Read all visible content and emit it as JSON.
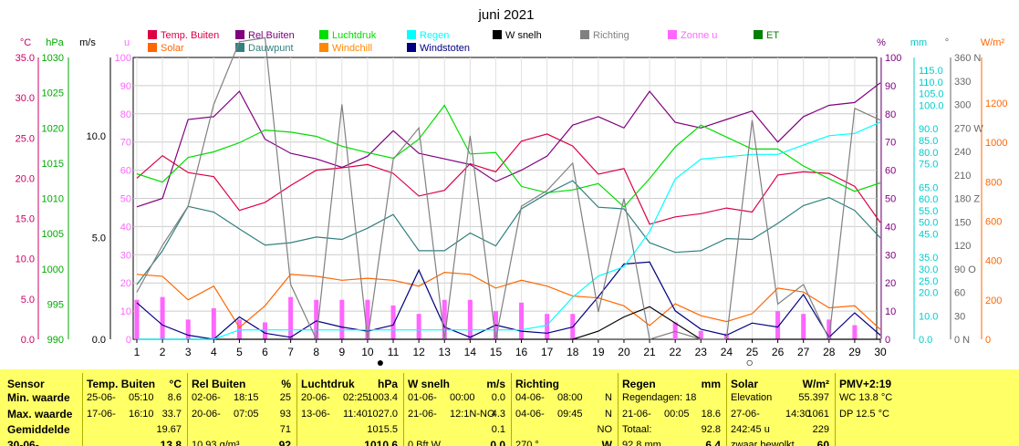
{
  "chart_data": {
    "type": "line",
    "title": "juni 2021",
    "x": [
      1,
      2,
      3,
      4,
      5,
      6,
      7,
      8,
      9,
      10,
      11,
      12,
      13,
      14,
      15,
      16,
      17,
      18,
      19,
      20,
      21,
      22,
      23,
      24,
      25,
      26,
      27,
      28,
      29,
      30
    ],
    "axes_left": [
      {
        "unit": "°C",
        "ticks": [
          "35.0",
          "30.0",
          "25.0",
          "20.0",
          "15.0",
          "10.0",
          "5.0",
          "0.0"
        ],
        "color": "#cc0066"
      },
      {
        "unit": "hPa",
        "ticks": [
          "1030",
          "1025",
          "1020",
          "1015",
          "1010",
          "1005",
          "1000",
          "995",
          "990"
        ],
        "color": "#00aa00"
      },
      {
        "unit": "m/s",
        "ticks": [
          "10.0",
          "5.0",
          "0.0"
        ],
        "color": "#000000"
      },
      {
        "unit": "u",
        "ticks": [
          "100",
          "90",
          "80",
          "70",
          "60",
          "50",
          "40",
          "30",
          "20",
          "10",
          "0"
        ],
        "color": "#ff66ff"
      }
    ],
    "axes_right": [
      {
        "unit": "%",
        "ticks": [
          "100",
          "90",
          "80",
          "70",
          "60",
          "50",
          "40",
          "30",
          "20",
          "10",
          "0"
        ],
        "color": "#800080"
      },
      {
        "unit": "mm",
        "ticks": [
          "115.0",
          "110.0",
          "105.0",
          "100.0",
          "90.0",
          "85.0",
          "80.0",
          "75.0",
          "65.0",
          "60.0",
          "55.0",
          "50.0",
          "45.0",
          "35.0",
          "30.0",
          "25.0",
          "20.0",
          "10.0",
          "0.0"
        ],
        "color": "#00cccc"
      },
      {
        "unit": "°",
        "ticks": [
          "360 N",
          "330",
          "300",
          "270 W",
          "240",
          "210",
          "180 Z",
          "150",
          "120",
          "90 O",
          "60",
          "30",
          "0 N"
        ],
        "color": "#666666"
      },
      {
        "unit": "W/m²",
        "ticks": [
          "1200",
          "1000",
          "800",
          "600",
          "400",
          "200",
          "0"
        ],
        "color": "#ff6600"
      }
    ],
    "legend": [
      {
        "name": "Temp. Buiten",
        "color": "#dd0044"
      },
      {
        "name": "Solar",
        "color": "#ff6600"
      },
      {
        "name": "Rel Buiten",
        "color": "#800080"
      },
      {
        "name": "Dauwpunt",
        "color": "#338080"
      },
      {
        "name": "Luchtdruk",
        "color": "#00dd00"
      },
      {
        "name": "Windchill",
        "color": "#ff8800"
      },
      {
        "name": "Regen",
        "color": "#00ffff"
      },
      {
        "name": "Windstoten",
        "color": "#000080"
      },
      {
        "name": "W snelh",
        "color": "#000000"
      },
      {
        "name": "Richting",
        "color": "#808080"
      },
      {
        "name": "Zonne u",
        "color": "#ff66ff"
      },
      {
        "name": "ET",
        "color": "#008000"
      }
    ],
    "series": [
      {
        "name": "Temp. Buiten",
        "color": "#dd0044",
        "scale": "temp",
        "values": [
          20.0,
          22.8,
          20.7,
          20.2,
          16.0,
          17.0,
          19.1,
          21.0,
          21.3,
          21.7,
          20.6,
          17.8,
          18.5,
          21.8,
          20.8,
          24.6,
          25.5,
          24.0,
          20.5,
          21.2,
          14.3,
          15.2,
          15.6,
          16.3,
          15.8,
          20.4,
          20.8,
          20.6,
          19.0,
          14.5
        ]
      },
      {
        "name": "Rel Buiten",
        "color": "#800080",
        "scale": "pct",
        "values": [
          47,
          50,
          78,
          79,
          88,
          71,
          66,
          64,
          61,
          65,
          74,
          66,
          64,
          62,
          56,
          60,
          65,
          76,
          79,
          75,
          88,
          77,
          75,
          78,
          81,
          70,
          79,
          83,
          84,
          91
        ]
      },
      {
        "name": "Luchtdruk",
        "color": "#00dd00",
        "scale": "hpa",
        "values": [
          1013.5,
          1012.3,
          1015.8,
          1016.6,
          1017.9,
          1019.7,
          1019.4,
          1018.8,
          1017.4,
          1016.5,
          1015.7,
          1018.4,
          1023.2,
          1016.3,
          1016.5,
          1011.7,
          1010.8,
          1011.2,
          1012.1,
          1008.8,
          1012.8,
          1017.3,
          1020.4,
          1018.7,
          1017.0,
          1017.0,
          1014.6,
          1012.8,
          1011.0,
          1012.2
        ]
      },
      {
        "name": "Dauwpunt",
        "color": "#338080",
        "scale": "temp",
        "values": [
          6.8,
          11.0,
          16.5,
          15.8,
          13.7,
          11.7,
          12.0,
          12.7,
          12.4,
          13.8,
          15.5,
          11.0,
          11.0,
          13.2,
          11.6,
          16.2,
          18.1,
          19.7,
          16.4,
          16.2,
          12.0,
          10.8,
          11.0,
          12.5,
          12.4,
          14.4,
          16.6,
          17.6,
          16.0,
          12.6
        ]
      },
      {
        "name": "Solar",
        "color": "#ff6600",
        "scale": "solar",
        "values": [
          330,
          320,
          200,
          270,
          60,
          170,
          330,
          320,
          300,
          310,
          300,
          270,
          340,
          330,
          260,
          300,
          270,
          220,
          210,
          170,
          70,
          180,
          120,
          90,
          130,
          260,
          240,
          160,
          170,
          50
        ]
      },
      {
        "name": "Windstoten",
        "color": "#000080",
        "scale": "wind",
        "values": [
          1.8,
          0.7,
          0.2,
          0.0,
          1.1,
          0.3,
          0.1,
          0.9,
          0.6,
          0.4,
          0.7,
          3.4,
          0.6,
          0.1,
          0.7,
          0.4,
          0.3,
          0.6,
          2.1,
          3.7,
          3.8,
          1.4,
          0.5,
          0.2,
          0.8,
          0.6,
          2.2,
          0.1,
          1.3,
          0.2
        ]
      },
      {
        "name": "W snelh",
        "color": "#000000",
        "scale": "wind",
        "values": [
          0.0,
          0.0,
          0.0,
          0.0,
          0.0,
          0.0,
          0.0,
          0.0,
          0.0,
          0.0,
          0.0,
          0.0,
          0.0,
          0.0,
          0.0,
          0.0,
          0.0,
          0.0,
          0.4,
          1.1,
          1.6,
          0.8,
          0.0,
          0.0,
          0.0,
          0.0,
          0.0,
          0.0,
          0.0,
          0.0
        ]
      },
      {
        "name": "Regen",
        "color": "#00ffff",
        "scale": "rain",
        "values": [
          0,
          0,
          0,
          0,
          4.0,
          4.0,
          4.0,
          4.0,
          4.0,
          4.0,
          4.0,
          4.0,
          4.0,
          4.0,
          4.0,
          4.0,
          6.0,
          18.0,
          27.0,
          31.0,
          46.0,
          68.5,
          77.0,
          78.0,
          79.0,
          79.0,
          83.0,
          87.0,
          88.0,
          92.8
        ]
      },
      {
        "name": "Richting",
        "color": "#808080",
        "scale": "dir",
        "values": [
          60,
          120,
          170,
          300,
          380,
          385,
          70,
          0,
          300,
          0,
          230,
          270,
          0,
          260,
          0,
          170,
          190,
          225,
          35,
          180,
          0,
          10,
          0,
          0,
          280,
          45,
          70,
          0,
          295,
          280
        ]
      },
      {
        "name": "Zonne u",
        "color": "#ff66ff",
        "scale": "u",
        "type": "bar",
        "values": [
          14,
          15,
          7,
          11,
          7,
          6,
          15,
          14,
          14,
          14,
          12,
          9,
          14,
          14,
          10,
          13,
          9,
          9,
          0,
          0,
          0,
          6,
          3,
          2,
          0,
          10,
          9,
          7,
          5,
          0
        ]
      }
    ],
    "x_markers": [
      {
        "x": 10.5,
        "symbol": "●",
        "color": "#000000"
      },
      {
        "x": 24.9,
        "symbol": "○",
        "color": "#000000"
      }
    ]
  },
  "table": {
    "sensor": {
      "header": "Sensor",
      "rows": [
        "Min. waarde",
        "Max. waarde",
        "Gemiddelde",
        "30-06-"
      ]
    },
    "temp": {
      "header": "Temp. Buiten",
      "unit": "°C",
      "rows": [
        [
          "25-06-",
          "05:10",
          "8.6"
        ],
        [
          "17-06-",
          "16:10",
          "33.7"
        ],
        [
          "",
          "",
          "19.67"
        ],
        [
          "",
          "",
          "13.8"
        ]
      ]
    },
    "rel": {
      "header": "Rel Buiten",
      "unit": "%",
      "rows": [
        [
          "02-06-",
          "18:15",
          "25"
        ],
        [
          "20-06-",
          "07:05",
          "93"
        ],
        [
          "",
          "",
          "71"
        ],
        [
          "10.93 g/m³",
          "",
          "92"
        ]
      ]
    },
    "druk": {
      "header": "Luchtdruk",
      "unit": "hPa",
      "rows": [
        [
          "20-06-",
          "02:25",
          "1003.4"
        ],
        [
          "13-06-",
          "11:40",
          "1027.0"
        ],
        [
          "",
          "",
          "1015.5"
        ],
        [
          "",
          "",
          "1010.6"
        ]
      ]
    },
    "wind": {
      "header": "W snelh",
      "unit": "m/s",
      "rows": [
        [
          "01-06-",
          "00:00",
          "0.0"
        ],
        [
          "21-06-",
          "12:1N-NO",
          "4.3"
        ],
        [
          "",
          "",
          "0.1"
        ],
        [
          "0 Bft W",
          "",
          "0.0"
        ]
      ]
    },
    "richting": {
      "header": "Richting",
      "rows": [
        [
          "04-06-",
          "08:00",
          "N"
        ],
        [
          "04-06-",
          "09:45",
          "N"
        ],
        [
          "",
          "",
          "NO"
        ],
        [
          "270 °",
          "",
          "W"
        ]
      ]
    },
    "regen": {
      "header": "Regen",
      "unit": "mm",
      "rows": [
        [
          "Regendagen: 18",
          "",
          ""
        ],
        [
          "21-06-",
          "00:05",
          "18.6"
        ],
        [
          "Totaal:",
          "",
          "92.8"
        ],
        [
          "92.8 mm",
          "",
          "6.4"
        ]
      ]
    },
    "solar": {
      "header": "Solar",
      "unit": "W/m²",
      "rows": [
        [
          "Elevation",
          "",
          "55.397"
        ],
        [
          "27-06-",
          "14:30",
          "1061"
        ],
        [
          "242:45 u",
          "",
          "229"
        ],
        [
          "zwaar bewolkt",
          "",
          "60"
        ]
      ]
    },
    "pmv": {
      "header": "PMV+2:19",
      "rows": [
        "WC 13.8 °C",
        "DP 12.5 °C"
      ]
    }
  }
}
